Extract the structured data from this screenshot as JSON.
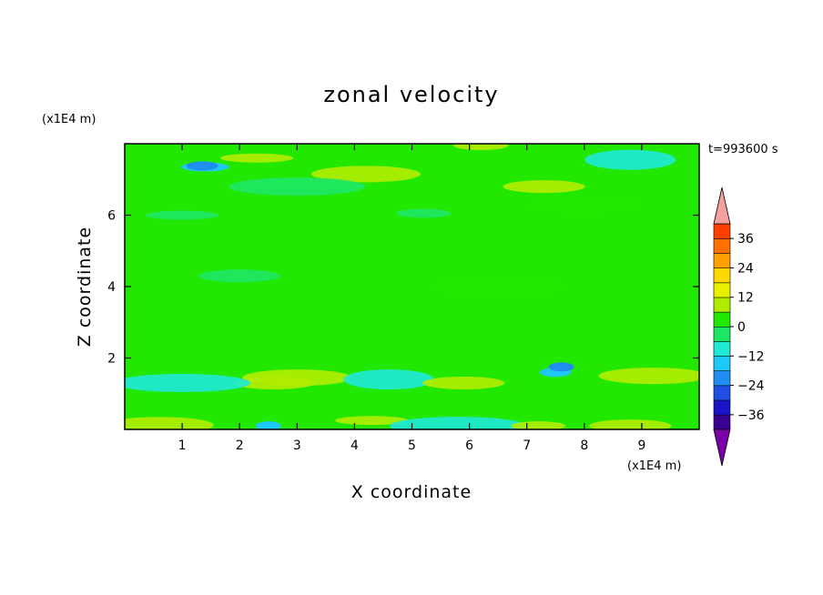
{
  "chart_data": {
    "type": "heatmap",
    "title": "zonal velocity",
    "xlabel": "X coordinate",
    "ylabel": "Z coordinate",
    "x_unit": "(x1E4 m)",
    "z_unit": "(x1E4 m)",
    "time_label": "t=993600 s",
    "xlim": [
      0,
      10
    ],
    "ylim": [
      0,
      8
    ],
    "x_ticks": [
      "1",
      "2",
      "3",
      "4",
      "5",
      "6",
      "7",
      "8",
      "9"
    ],
    "y_ticks": [
      "2",
      "4",
      "6"
    ],
    "colorbar": {
      "range": [
        -42,
        42
      ],
      "step": 6,
      "tick_labels": [
        "36",
        "24",
        "12",
        "0",
        "−12",
        "−24",
        "−36"
      ],
      "tick_values": [
        36,
        24,
        12,
        0,
        -12,
        -24,
        -36
      ],
      "extend": "both",
      "colors": [
        "#7a00a8",
        "#3a0090",
        "#1a14c8",
        "#1f4ee0",
        "#1f8ef0",
        "#1ec8f8",
        "#20e8d4",
        "#1ee664",
        "#22e800",
        "#b0ec00",
        "#e6f000",
        "#ffd800",
        "#ffa000",
        "#ff7000",
        "#ff4000",
        "#f01000",
        "#f4a0a0"
      ]
    },
    "features": [
      {
        "x": 3.0,
        "z": 1.45,
        "value": 11
      },
      {
        "x": 2.6,
        "z": 1.3,
        "value": 7
      },
      {
        "x": 1.0,
        "z": 1.3,
        "value": -7
      },
      {
        "x": 4.6,
        "z": 1.4,
        "value": -12
      },
      {
        "x": 4.3,
        "z": 0.25,
        "value": 7
      },
      {
        "x": 2.5,
        "z": 0.1,
        "value": -14
      },
      {
        "x": 0.6,
        "z": 0.12,
        "value": 8
      },
      {
        "x": 5.9,
        "z": 1.3,
        "value": 6
      },
      {
        "x": 5.8,
        "z": 0.1,
        "value": -8
      },
      {
        "x": 7.5,
        "z": 1.6,
        "value": -15
      },
      {
        "x": 7.6,
        "z": 1.75,
        "value": -21
      },
      {
        "x": 7.2,
        "z": 0.1,
        "value": 8
      },
      {
        "x": 9.2,
        "z": 1.5,
        "value": 6
      },
      {
        "x": 8.8,
        "z": 0.1,
        "value": 6
      },
      {
        "x": 1.4,
        "z": 7.35,
        "value": -14
      },
      {
        "x": 1.35,
        "z": 7.38,
        "value": -21
      },
      {
        "x": 2.3,
        "z": 7.6,
        "value": 7
      },
      {
        "x": 6.2,
        "z": 7.95,
        "value": 10
      },
      {
        "x": 4.2,
        "z": 7.15,
        "value": 6
      },
      {
        "x": 7.3,
        "z": 6.8,
        "value": 6
      },
      {
        "x": 3.0,
        "z": 6.8,
        "value": -6
      },
      {
        "x": 8.8,
        "z": 7.55,
        "value": -7
      },
      {
        "x": 1.0,
        "z": 6.0,
        "value": -6
      },
      {
        "x": 5.2,
        "z": 6.05,
        "value": -5
      },
      {
        "x": 8.0,
        "z": 6.3,
        "value": 5
      },
      {
        "x": 2.0,
        "z": 4.3,
        "value": -4
      },
      {
        "x": 6.5,
        "z": 4.0,
        "value": 4
      }
    ]
  }
}
